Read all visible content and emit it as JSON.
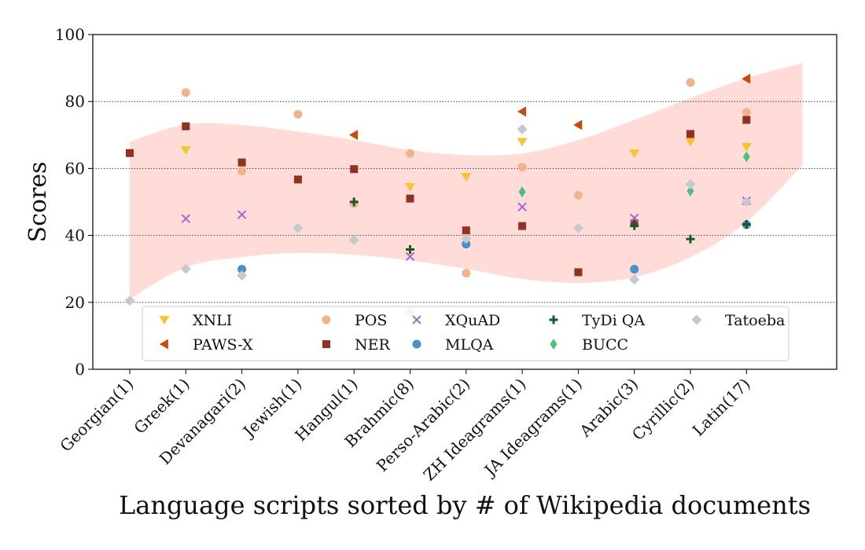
{
  "chart_data": {
    "type": "scatter",
    "title": "",
    "xlabel": "Language scripts sorted by # of Wikipedia documents",
    "ylabel": "Scores",
    "ylim": [
      0,
      100
    ],
    "yticks": [
      0,
      20,
      40,
      60,
      80,
      100
    ],
    "grid": "horizontal dotted at 20, 40, 60, 80",
    "legend_position": "lower-center, 5 columns",
    "categories": [
      "Georgian(1)",
      "Greek(1)",
      "Devanagari(2)",
      "Jewish(1)",
      "Hangul(1)",
      "Brahmic(8)",
      "Perso-Arabic(2)",
      "ZH Ideagrams(1)",
      "JA Ideagrams(1)",
      "Arabic(3)",
      "Cyrillic(2)",
      "Latin(17)"
    ],
    "series": [
      {
        "name": "XNLI",
        "marker": "triangle-down",
        "color": "#f5c431",
        "values": [
          null,
          65.5,
          null,
          null,
          null,
          54.5,
          57.5,
          68,
          null,
          64.5,
          68,
          66.5
        ]
      },
      {
        "name": "PAWS-X",
        "marker": "triangle-left",
        "color": "#c94a0d",
        "values": [
          null,
          null,
          null,
          null,
          70,
          null,
          null,
          77,
          73,
          null,
          null,
          86.8
        ]
      },
      {
        "name": "POS",
        "marker": "circle",
        "color": "#efb48c",
        "values": [
          null,
          82.7,
          59.2,
          76.2,
          49.5,
          64.5,
          28.7,
          60.4,
          52,
          null,
          85.7,
          76.8
        ]
      },
      {
        "name": "NER",
        "marker": "square",
        "color": "#923026",
        "values": [
          64.6,
          72.6,
          61.8,
          56.7,
          59.8,
          51,
          41.5,
          42.8,
          29,
          43.6,
          70.3,
          74.5
        ]
      },
      {
        "name": "XQuAD",
        "marker": "x",
        "color": "#aa66cc",
        "values": [
          null,
          45,
          46.2,
          null,
          null,
          33.7,
          null,
          48.5,
          null,
          45.2,
          null,
          50.3
        ]
      },
      {
        "name": "MLQA",
        "marker": "circle",
        "color": "#4a90c8",
        "values": [
          null,
          null,
          29.9,
          null,
          null,
          null,
          37.4,
          null,
          null,
          29.9,
          null,
          43.2
        ]
      },
      {
        "name": "TyDi QA",
        "marker": "plus",
        "color": "#165a2e",
        "values": [
          null,
          null,
          null,
          null,
          50,
          35.8,
          null,
          null,
          null,
          42.9,
          38.9,
          43.3
        ]
      },
      {
        "name": "BUCC",
        "marker": "diamond-thin",
        "color": "#4cbf7c",
        "values": [
          null,
          null,
          null,
          null,
          null,
          null,
          null,
          53,
          null,
          null,
          53.3,
          63.5
        ]
      },
      {
        "name": "Tatoeba",
        "marker": "diamond",
        "color": "#c6c9cc",
        "values": [
          20.5,
          30,
          28,
          42.2,
          38.6,
          17.1,
          39,
          71.7,
          42.2,
          26.8,
          55.3,
          50
        ]
      }
    ],
    "band": {
      "color": "#ffdcd8",
      "x": [
        0,
        1,
        2,
        3,
        4,
        5,
        6,
        7,
        8,
        9,
        10,
        11,
        12
      ],
      "upper": [
        68,
        73.2,
        73,
        71,
        68.5,
        65.5,
        64,
        64.5,
        68.5,
        74.5,
        81,
        87,
        91.5
      ],
      "lower": [
        21,
        30.5,
        33.5,
        34.8,
        34.2,
        32.5,
        30,
        27,
        25.8,
        27.5,
        33.5,
        44,
        61
      ]
    }
  }
}
